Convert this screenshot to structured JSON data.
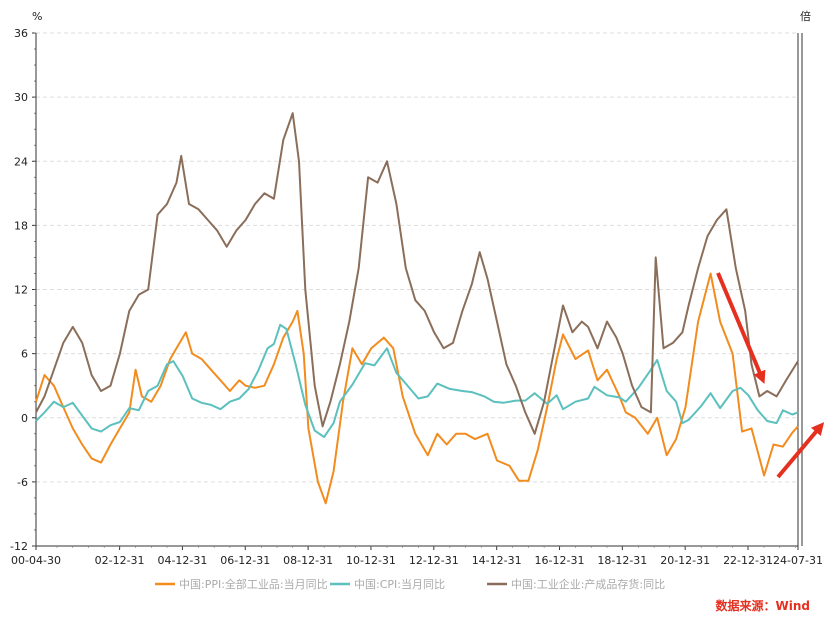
{
  "chart_data": {
    "type": "line",
    "title": "",
    "y_unit_left": "%",
    "y_unit_right": "倍",
    "ylim": [
      -12,
      36
    ],
    "y_ticks": [
      -12,
      -6,
      0,
      6,
      12,
      18,
      24,
      30,
      36
    ],
    "x_ticks": [
      "00-04-30",
      "02-12-31",
      "04-12-31",
      "06-12-31",
      "08-12-31",
      "10-12-31",
      "12-12-31",
      "14-12-31",
      "16-12-31",
      "18-12-31",
      "20-12-31",
      "22-12-31",
      "24-07-31"
    ],
    "grid": true,
    "legend_position": "bottom",
    "series": [
      {
        "name": "中国:PPI:全部工业品:当月同比",
        "color": "#f28c1e",
        "points": [
          [
            2000.33,
            1.5
          ],
          [
            2000.6,
            4.0
          ],
          [
            2000.9,
            3.0
          ],
          [
            2001.2,
            1.0
          ],
          [
            2001.5,
            -1.0
          ],
          [
            2001.8,
            -2.5
          ],
          [
            2002.1,
            -3.8
          ],
          [
            2002.4,
            -4.2
          ],
          [
            2002.7,
            -2.5
          ],
          [
            2003.0,
            -1.0
          ],
          [
            2003.3,
            0.5
          ],
          [
            2003.5,
            4.5
          ],
          [
            2003.7,
            2.0
          ],
          [
            2004.0,
            1.5
          ],
          [
            2004.3,
            3.0
          ],
          [
            2004.6,
            5.5
          ],
          [
            2004.9,
            7.0
          ],
          [
            2005.1,
            8.0
          ],
          [
            2005.3,
            6.0
          ],
          [
            2005.6,
            5.5
          ],
          [
            2005.9,
            4.5
          ],
          [
            2006.2,
            3.5
          ],
          [
            2006.5,
            2.5
          ],
          [
            2006.8,
            3.5
          ],
          [
            2007.0,
            3.0
          ],
          [
            2007.3,
            2.8
          ],
          [
            2007.6,
            3.0
          ],
          [
            2007.9,
            5.0
          ],
          [
            2008.2,
            7.5
          ],
          [
            2008.5,
            9.0
          ],
          [
            2008.65,
            10.0
          ],
          [
            2008.85,
            6.0
          ],
          [
            2009.0,
            -1.0
          ],
          [
            2009.3,
            -6.0
          ],
          [
            2009.55,
            -8.0
          ],
          [
            2009.8,
            -5.0
          ],
          [
            2010.1,
            1.5
          ],
          [
            2010.4,
            6.5
          ],
          [
            2010.7,
            5.0
          ],
          [
            2011.0,
            6.5
          ],
          [
            2011.4,
            7.5
          ],
          [
            2011.7,
            6.5
          ],
          [
            2012.0,
            2.0
          ],
          [
            2012.4,
            -1.5
          ],
          [
            2012.8,
            -3.5
          ],
          [
            2013.1,
            -1.5
          ],
          [
            2013.4,
            -2.5
          ],
          [
            2013.7,
            -1.5
          ],
          [
            2014.0,
            -1.5
          ],
          [
            2014.3,
            -2.0
          ],
          [
            2014.7,
            -1.5
          ],
          [
            2015.0,
            -4.0
          ],
          [
            2015.4,
            -4.5
          ],
          [
            2015.7,
            -5.9
          ],
          [
            2016.0,
            -5.9
          ],
          [
            2016.3,
            -3.0
          ],
          [
            2016.6,
            1.0
          ],
          [
            2016.9,
            5.5
          ],
          [
            2017.1,
            7.8
          ],
          [
            2017.5,
            5.5
          ],
          [
            2017.9,
            6.3
          ],
          [
            2018.2,
            3.5
          ],
          [
            2018.5,
            4.5
          ],
          [
            2018.9,
            2.0
          ],
          [
            2019.1,
            0.5
          ],
          [
            2019.4,
            0.0
          ],
          [
            2019.8,
            -1.5
          ],
          [
            2020.1,
            0.0
          ],
          [
            2020.4,
            -3.5
          ],
          [
            2020.7,
            -2.0
          ],
          [
            2021.0,
            1.0
          ],
          [
            2021.4,
            9.0
          ],
          [
            2021.8,
            13.5
          ],
          [
            2022.1,
            9.0
          ],
          [
            2022.5,
            6.0
          ],
          [
            2022.8,
            -1.3
          ],
          [
            2023.1,
            -1.0
          ],
          [
            2023.5,
            -5.4
          ],
          [
            2023.8,
            -2.5
          ],
          [
            2024.1,
            -2.7
          ],
          [
            2024.4,
            -1.4
          ],
          [
            2024.58,
            -0.8
          ]
        ]
      },
      {
        "name": "中国:CPI:当月同比",
        "color": "#5bc0be",
        "points": [
          [
            2000.33,
            -0.3
          ],
          [
            2000.6,
            0.5
          ],
          [
            2000.9,
            1.5
          ],
          [
            2001.2,
            1.0
          ],
          [
            2001.5,
            1.4
          ],
          [
            2001.8,
            0.2
          ],
          [
            2002.1,
            -1.0
          ],
          [
            2002.4,
            -1.3
          ],
          [
            2002.7,
            -0.7
          ],
          [
            2003.0,
            -0.4
          ],
          [
            2003.3,
            0.9
          ],
          [
            2003.6,
            0.7
          ],
          [
            2003.9,
            2.5
          ],
          [
            2004.2,
            3.0
          ],
          [
            2004.5,
            5.0
          ],
          [
            2004.7,
            5.3
          ],
          [
            2005.0,
            3.9
          ],
          [
            2005.3,
            1.8
          ],
          [
            2005.6,
            1.4
          ],
          [
            2005.9,
            1.2
          ],
          [
            2006.2,
            0.8
          ],
          [
            2006.5,
            1.5
          ],
          [
            2006.8,
            1.8
          ],
          [
            2007.1,
            2.7
          ],
          [
            2007.4,
            4.4
          ],
          [
            2007.7,
            6.5
          ],
          [
            2007.9,
            6.9
          ],
          [
            2008.1,
            8.7
          ],
          [
            2008.3,
            8.3
          ],
          [
            2008.6,
            4.9
          ],
          [
            2008.9,
            1.2
          ],
          [
            2009.2,
            -1.2
          ],
          [
            2009.5,
            -1.8
          ],
          [
            2009.8,
            -0.5
          ],
          [
            2010.0,
            1.5
          ],
          [
            2010.4,
            3.1
          ],
          [
            2010.8,
            5.1
          ],
          [
            2011.1,
            4.9
          ],
          [
            2011.5,
            6.5
          ],
          [
            2011.8,
            4.2
          ],
          [
            2012.1,
            3.2
          ],
          [
            2012.5,
            1.8
          ],
          [
            2012.8,
            2.0
          ],
          [
            2013.1,
            3.2
          ],
          [
            2013.5,
            2.7
          ],
          [
            2013.9,
            2.5
          ],
          [
            2014.2,
            2.4
          ],
          [
            2014.6,
            2.0
          ],
          [
            2014.9,
            1.5
          ],
          [
            2015.2,
            1.4
          ],
          [
            2015.6,
            1.6
          ],
          [
            2015.9,
            1.6
          ],
          [
            2016.2,
            2.3
          ],
          [
            2016.6,
            1.3
          ],
          [
            2016.9,
            2.1
          ],
          [
            2017.1,
            0.8
          ],
          [
            2017.5,
            1.5
          ],
          [
            2017.9,
            1.8
          ],
          [
            2018.1,
            2.9
          ],
          [
            2018.5,
            2.1
          ],
          [
            2018.9,
            1.9
          ],
          [
            2019.1,
            1.5
          ],
          [
            2019.5,
            2.8
          ],
          [
            2019.9,
            4.5
          ],
          [
            2020.1,
            5.4
          ],
          [
            2020.4,
            2.5
          ],
          [
            2020.7,
            1.5
          ],
          [
            2020.9,
            -0.5
          ],
          [
            2021.1,
            -0.2
          ],
          [
            2021.5,
            1.1
          ],
          [
            2021.8,
            2.3
          ],
          [
            2022.1,
            0.9
          ],
          [
            2022.5,
            2.5
          ],
          [
            2022.75,
            2.8
          ],
          [
            2023.0,
            2.1
          ],
          [
            2023.3,
            0.7
          ],
          [
            2023.6,
            -0.3
          ],
          [
            2023.9,
            -0.5
          ],
          [
            2024.1,
            0.7
          ],
          [
            2024.4,
            0.3
          ],
          [
            2024.58,
            0.5
          ]
        ]
      },
      {
        "name": "中国:工业企业:产成品存货:同比",
        "color": "#8b6e5a",
        "points": [
          [
            2000.33,
            0.5
          ],
          [
            2000.6,
            2.0
          ],
          [
            2000.9,
            4.5
          ],
          [
            2001.2,
            7.0
          ],
          [
            2001.5,
            8.5
          ],
          [
            2001.8,
            7.0
          ],
          [
            2002.1,
            4.0
          ],
          [
            2002.4,
            2.5
          ],
          [
            2002.7,
            3.0
          ],
          [
            2003.0,
            6.0
          ],
          [
            2003.3,
            10.0
          ],
          [
            2003.6,
            11.5
          ],
          [
            2003.9,
            12.0
          ],
          [
            2004.2,
            19.0
          ],
          [
            2004.5,
            20.0
          ],
          [
            2004.8,
            22.0
          ],
          [
            2004.95,
            24.5
          ],
          [
            2005.2,
            20.0
          ],
          [
            2005.5,
            19.5
          ],
          [
            2005.8,
            18.5
          ],
          [
            2006.1,
            17.5
          ],
          [
            2006.4,
            16.0
          ],
          [
            2006.7,
            17.5
          ],
          [
            2007.0,
            18.5
          ],
          [
            2007.3,
            20.0
          ],
          [
            2007.6,
            21.0
          ],
          [
            2007.9,
            20.5
          ],
          [
            2008.2,
            26.0
          ],
          [
            2008.5,
            28.5
          ],
          [
            2008.7,
            24.0
          ],
          [
            2008.9,
            12.0
          ],
          [
            2009.2,
            3.0
          ],
          [
            2009.45,
            -0.8
          ],
          [
            2009.7,
            1.5
          ],
          [
            2010.0,
            5.0
          ],
          [
            2010.3,
            9.0
          ],
          [
            2010.6,
            14.0
          ],
          [
            2010.9,
            22.5
          ],
          [
            2011.2,
            22.0
          ],
          [
            2011.5,
            24.0
          ],
          [
            2011.8,
            20.0
          ],
          [
            2012.1,
            14.0
          ],
          [
            2012.4,
            11.0
          ],
          [
            2012.7,
            10.0
          ],
          [
            2013.0,
            8.0
          ],
          [
            2013.3,
            6.5
          ],
          [
            2013.6,
            7.0
          ],
          [
            2013.9,
            10.0
          ],
          [
            2014.2,
            12.5
          ],
          [
            2014.45,
            15.5
          ],
          [
            2014.7,
            13.0
          ],
          [
            2015.0,
            9.0
          ],
          [
            2015.3,
            5.0
          ],
          [
            2015.6,
            3.0
          ],
          [
            2015.9,
            0.5
          ],
          [
            2016.2,
            -1.5
          ],
          [
            2016.5,
            1.5
          ],
          [
            2016.8,
            6.0
          ],
          [
            2017.1,
            10.5
          ],
          [
            2017.4,
            8.0
          ],
          [
            2017.7,
            9.0
          ],
          [
            2017.9,
            8.5
          ],
          [
            2018.2,
            6.5
          ],
          [
            2018.5,
            9.0
          ],
          [
            2018.8,
            7.5
          ],
          [
            2019.0,
            6.0
          ],
          [
            2019.3,
            3.0
          ],
          [
            2019.6,
            1.0
          ],
          [
            2019.9,
            0.5
          ],
          [
            2020.05,
            15.0
          ],
          [
            2020.3,
            6.5
          ],
          [
            2020.6,
            7.0
          ],
          [
            2020.9,
            8.0
          ],
          [
            2021.1,
            10.5
          ],
          [
            2021.4,
            14.0
          ],
          [
            2021.7,
            17.0
          ],
          [
            2022.0,
            18.5
          ],
          [
            2022.3,
            19.5
          ],
          [
            2022.6,
            14.0
          ],
          [
            2022.9,
            10.0
          ],
          [
            2023.1,
            5.0
          ],
          [
            2023.35,
            2.0
          ],
          [
            2023.6,
            2.5
          ],
          [
            2023.9,
            2.0
          ],
          [
            2024.2,
            3.5
          ],
          [
            2024.58,
            5.3
          ]
        ]
      }
    ]
  },
  "source": {
    "text": "数据来源：Wind",
    "color": "#e53020"
  },
  "arrows": {
    "color": "#e53020"
  }
}
